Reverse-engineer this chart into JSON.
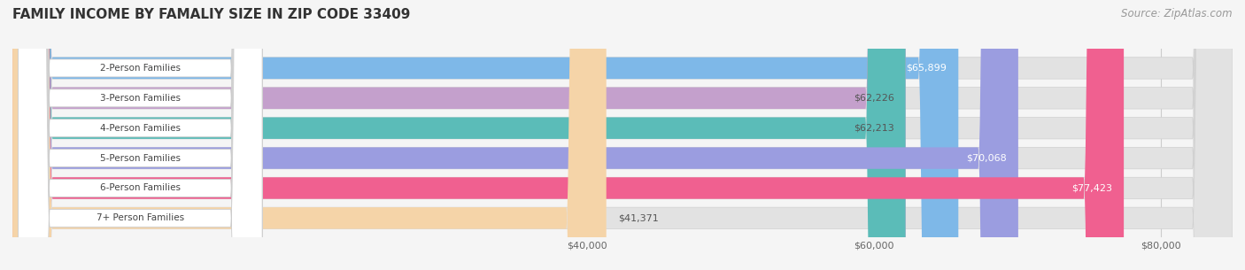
{
  "title": "FAMILY INCOME BY FAMALIY SIZE IN ZIP CODE 33409",
  "source": "Source: ZipAtlas.com",
  "categories": [
    "2-Person Families",
    "3-Person Families",
    "4-Person Families",
    "5-Person Families",
    "6-Person Families",
    "7+ Person Families"
  ],
  "values": [
    65899,
    62226,
    62213,
    70068,
    77423,
    41371
  ],
  "bar_colors": [
    "#7eb8e8",
    "#c4a0cc",
    "#5bbcb8",
    "#9b9de0",
    "#f06090",
    "#f5d4a8"
  ],
  "label_colors": [
    "white",
    "#555555",
    "#555555",
    "white",
    "white",
    "#555555"
  ],
  "xlim": [
    0,
    85000
  ],
  "background_color": "#f5f5f5",
  "title_fontsize": 11,
  "source_fontsize": 8.5
}
